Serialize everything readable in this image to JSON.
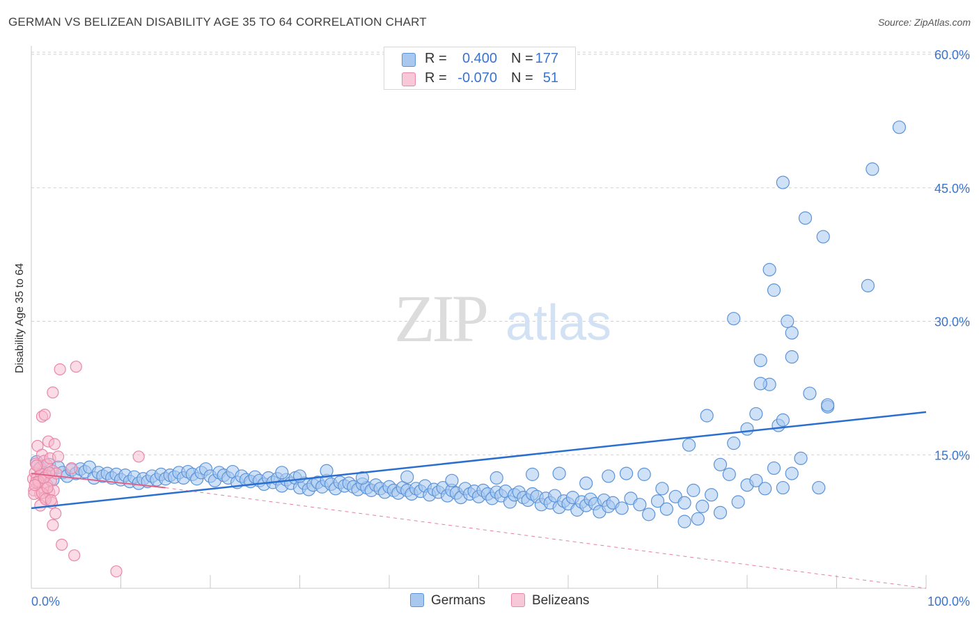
{
  "title": "GERMAN VS BELIZEAN DISABILITY AGE 35 TO 64 CORRELATION CHART",
  "source": "Source: ZipAtlas.com",
  "watermark": {
    "zip": "ZIP",
    "atlas": "atlas"
  },
  "colors": {
    "germans_fill": "#a8c8f0",
    "germans_stroke": "#5b93d8",
    "germans_line": "#2a6fd0",
    "belizeans_fill": "#f8b8cc",
    "belizeans_stroke": "#e888a8",
    "belizeans_line": "#e06088",
    "accent_text": "#3a74cc",
    "grid": "#d0d0d0"
  },
  "legend_top": {
    "rows": [
      {
        "r_label": "R =",
        "r_value": "0.400",
        "n_label": "N =",
        "n_value": "177"
      },
      {
        "r_label": "R =",
        "r_value": "-0.070",
        "n_label": "N =",
        "n_value": "51"
      }
    ]
  },
  "legend_bottom": {
    "germans": "Germans",
    "belizeans": "Belizeans"
  },
  "chart_data": {
    "type": "scatter",
    "title": "GERMAN VS BELIZEAN DISABILITY AGE 35 TO 64 CORRELATION CHART",
    "xlabel": "",
    "ylabel": "Disability Age 35 to 64",
    "xlim": [
      0,
      100
    ],
    "ylim": [
      0,
      60
    ],
    "x_tick_labels": [
      "0.0%",
      "100.0%"
    ],
    "y_ticks": [
      15,
      30,
      45,
      60
    ],
    "y_tick_labels": [
      "15.0%",
      "30.0%",
      "45.0%",
      "60.0%"
    ],
    "grid": "horizontal dashed",
    "legend_placement": "top-center",
    "series": [
      {
        "name": "Germans",
        "r": 0.4,
        "n": 177,
        "trend": {
          "x": [
            0,
            100
          ],
          "y": [
            9.0,
            19.8
          ],
          "style": "solid"
        },
        "points": [
          [
            0.6,
            14.2
          ],
          [
            1.0,
            13.5
          ],
          [
            1.5,
            12.8
          ],
          [
            2.0,
            13.9
          ],
          [
            2.4,
            12.2
          ],
          [
            3.0,
            13.6
          ],
          [
            3.5,
            13.0
          ],
          [
            4.0,
            12.6
          ],
          [
            4.5,
            13.3
          ],
          [
            5.0,
            12.9
          ],
          [
            5.5,
            13.4
          ],
          [
            6.0,
            13.1
          ],
          [
            6.5,
            13.6
          ],
          [
            7.0,
            12.4
          ],
          [
            7.5,
            13.0
          ],
          [
            8.0,
            12.6
          ],
          [
            8.5,
            12.9
          ],
          [
            9.0,
            12.4
          ],
          [
            9.5,
            12.8
          ],
          [
            10.0,
            12.2
          ],
          [
            10.5,
            12.7
          ],
          [
            11.0,
            12.0
          ],
          [
            11.5,
            12.5
          ],
          [
            12.0,
            11.8
          ],
          [
            12.5,
            12.3
          ],
          [
            13.0,
            12.0
          ],
          [
            13.5,
            12.6
          ],
          [
            14.0,
            12.2
          ],
          [
            14.5,
            12.8
          ],
          [
            15.0,
            12.3
          ],
          [
            15.5,
            12.7
          ],
          [
            16.0,
            12.5
          ],
          [
            16.5,
            13.0
          ],
          [
            17.0,
            12.4
          ],
          [
            17.5,
            13.1
          ],
          [
            18.0,
            12.8
          ],
          [
            18.5,
            12.3
          ],
          [
            19.0,
            13.0
          ],
          [
            19.5,
            13.4
          ],
          [
            20.0,
            12.6
          ],
          [
            20.5,
            12.1
          ],
          [
            21.0,
            13.0
          ],
          [
            21.5,
            12.7
          ],
          [
            22.0,
            12.4
          ],
          [
            22.5,
            13.1
          ],
          [
            23.0,
            11.9
          ],
          [
            23.5,
            12.6
          ],
          [
            24.0,
            12.2
          ],
          [
            24.5,
            12.0
          ],
          [
            25.0,
            12.5
          ],
          [
            25.5,
            12.1
          ],
          [
            26.0,
            11.7
          ],
          [
            26.5,
            12.4
          ],
          [
            27.0,
            11.9
          ],
          [
            27.5,
            12.3
          ],
          [
            28.0,
            11.5
          ],
          [
            28.5,
            12.2
          ],
          [
            29.0,
            11.8
          ],
          [
            29.5,
            12.4
          ],
          [
            30.0,
            11.3
          ],
          [
            30.5,
            11.8
          ],
          [
            31.0,
            11.1
          ],
          [
            31.5,
            11.6
          ],
          [
            32.0,
            11.9
          ],
          [
            32.5,
            11.4
          ],
          [
            33.0,
            12.1
          ],
          [
            33.5,
            11.7
          ],
          [
            34.0,
            11.2
          ],
          [
            34.5,
            11.9
          ],
          [
            35.0,
            11.5
          ],
          [
            35.5,
            11.8
          ],
          [
            36.0,
            11.4
          ],
          [
            36.5,
            11.1
          ],
          [
            37.0,
            11.7
          ],
          [
            37.5,
            11.3
          ],
          [
            38.0,
            11.0
          ],
          [
            38.5,
            11.6
          ],
          [
            39.0,
            11.2
          ],
          [
            39.5,
            10.8
          ],
          [
            40.0,
            11.4
          ],
          [
            40.5,
            11.0
          ],
          [
            41.0,
            10.7
          ],
          [
            41.5,
            11.3
          ],
          [
            42.0,
            11.0
          ],
          [
            42.5,
            10.6
          ],
          [
            43.0,
            11.2
          ],
          [
            43.5,
            10.9
          ],
          [
            44.0,
            11.5
          ],
          [
            44.5,
            10.5
          ],
          [
            45.0,
            11.1
          ],
          [
            45.5,
            10.8
          ],
          [
            46.0,
            11.3
          ],
          [
            46.5,
            10.4
          ],
          [
            47.0,
            11.0
          ],
          [
            47.5,
            10.7
          ],
          [
            48.0,
            10.2
          ],
          [
            48.5,
            11.2
          ],
          [
            49.0,
            10.6
          ],
          [
            49.5,
            10.9
          ],
          [
            50.0,
            10.3
          ],
          [
            50.5,
            11.0
          ],
          [
            51.0,
            10.6
          ],
          [
            51.5,
            10.1
          ],
          [
            52.0,
            10.8
          ],
          [
            52.5,
            10.4
          ],
          [
            53.0,
            10.9
          ],
          [
            53.5,
            9.7
          ],
          [
            54.0,
            10.5
          ],
          [
            54.5,
            10.8
          ],
          [
            55.0,
            10.2
          ],
          [
            55.5,
            9.9
          ],
          [
            56.0,
            10.6
          ],
          [
            56.5,
            10.3
          ],
          [
            57.0,
            9.4
          ],
          [
            57.5,
            10.1
          ],
          [
            58.0,
            9.6
          ],
          [
            58.5,
            10.4
          ],
          [
            59.0,
            9.1
          ],
          [
            59.5,
            9.8
          ],
          [
            60.0,
            9.5
          ],
          [
            60.5,
            10.2
          ],
          [
            61.0,
            8.8
          ],
          [
            61.5,
            9.7
          ],
          [
            62.0,
            9.3
          ],
          [
            62.5,
            10.0
          ],
          [
            63.0,
            9.5
          ],
          [
            63.5,
            8.6
          ],
          [
            64.0,
            9.9
          ],
          [
            64.5,
            9.2
          ],
          [
            65.0,
            9.6
          ],
          [
            66.0,
            9.0
          ],
          [
            67.0,
            10.1
          ],
          [
            68.0,
            9.4
          ],
          [
            69.0,
            8.3
          ],
          [
            70.0,
            9.8
          ],
          [
            71.0,
            8.9
          ],
          [
            72.0,
            10.3
          ],
          [
            73.0,
            9.6
          ],
          [
            74.0,
            11.0
          ],
          [
            75.0,
            9.2
          ],
          [
            76.0,
            10.5
          ],
          [
            77.0,
            8.5
          ],
          [
            78.0,
            12.8
          ],
          [
            79.0,
            9.7
          ],
          [
            80.0,
            11.6
          ],
          [
            81.0,
            12.1
          ],
          [
            82.0,
            11.2
          ],
          [
            83.0,
            13.5
          ],
          [
            84.0,
            11.3
          ],
          [
            85.0,
            12.9
          ],
          [
            28.0,
            13.0
          ],
          [
            30.0,
            12.6
          ],
          [
            33.0,
            13.2
          ],
          [
            37.0,
            12.4
          ],
          [
            42.0,
            12.5
          ],
          [
            47.0,
            12.1
          ],
          [
            52.0,
            12.4
          ],
          [
            56.0,
            12.8
          ],
          [
            59.0,
            12.9
          ],
          [
            62.0,
            11.8
          ],
          [
            64.5,
            12.6
          ],
          [
            66.5,
            12.9
          ],
          [
            68.5,
            12.8
          ],
          [
            70.5,
            11.2
          ],
          [
            73.0,
            7.5
          ],
          [
            73.5,
            16.1
          ],
          [
            74.5,
            7.8
          ],
          [
            75.5,
            19.4
          ],
          [
            77.0,
            13.9
          ],
          [
            78.5,
            16.3
          ],
          [
            80.0,
            17.9
          ],
          [
            81.0,
            19.6
          ],
          [
            82.5,
            22.9
          ],
          [
            83.5,
            18.3
          ],
          [
            84.0,
            18.9
          ],
          [
            85.0,
            26.0
          ],
          [
            86.0,
            14.6
          ],
          [
            87.0,
            21.9
          ],
          [
            88.0,
            11.3
          ],
          [
            89.0,
            20.4
          ],
          [
            78.5,
            30.3
          ],
          [
            81.5,
            25.6
          ],
          [
            85.0,
            28.7
          ],
          [
            81.5,
            23.0
          ],
          [
            84.5,
            30.0
          ],
          [
            82.5,
            35.8
          ],
          [
            83.0,
            33.5
          ],
          [
            84.0,
            45.6
          ],
          [
            88.5,
            39.5
          ],
          [
            86.5,
            41.6
          ],
          [
            94.0,
            47.1
          ],
          [
            97.0,
            51.8
          ],
          [
            93.5,
            34.0
          ],
          [
            89.0,
            20.6
          ]
        ]
      },
      {
        "name": "Belizeans",
        "r": -0.07,
        "n": 51,
        "trend": {
          "x": [
            0,
            15
          ],
          "y": [
            12.9,
            11.3
          ],
          "style": "solid",
          "extended": {
            "x": [
              15,
              100
            ],
            "y": [
              11.3,
              0.0
            ],
            "style": "dashed"
          }
        },
        "points": [
          [
            0.2,
            12.3
          ],
          [
            0.3,
            11.0
          ],
          [
            0.4,
            13.0
          ],
          [
            0.5,
            14.0
          ],
          [
            0.6,
            12.4
          ],
          [
            0.7,
            16.0
          ],
          [
            0.8,
            11.8
          ],
          [
            0.9,
            13.5
          ],
          [
            1.0,
            10.6
          ],
          [
            1.1,
            12.8
          ],
          [
            1.2,
            15.0
          ],
          [
            1.3,
            11.3
          ],
          [
            1.4,
            14.3
          ],
          [
            1.5,
            10.2
          ],
          [
            1.6,
            12.6
          ],
          [
            1.7,
            13.9
          ],
          [
            1.8,
            11.6
          ],
          [
            1.9,
            16.5
          ],
          [
            2.0,
            10.8
          ],
          [
            2.1,
            14.6
          ],
          [
            2.2,
            12.1
          ],
          [
            2.3,
            9.6
          ],
          [
            2.4,
            13.2
          ],
          [
            2.5,
            11.0
          ],
          [
            2.6,
            16.2
          ],
          [
            2.7,
            8.4
          ],
          [
            2.8,
            12.9
          ],
          [
            3.0,
            14.8
          ],
          [
            0.3,
            10.6
          ],
          [
            0.5,
            11.9
          ],
          [
            0.6,
            13.8
          ],
          [
            0.8,
            12.0
          ],
          [
            1.0,
            9.3
          ],
          [
            1.2,
            10.7
          ],
          [
            1.4,
            12.4
          ],
          [
            1.6,
            10.0
          ],
          [
            1.8,
            11.3
          ],
          [
            2.0,
            13.0
          ],
          [
            2.2,
            9.9
          ],
          [
            0.4,
            11.6
          ],
          [
            3.2,
            24.6
          ],
          [
            5.0,
            24.9
          ],
          [
            2.4,
            22.0
          ],
          [
            1.2,
            19.3
          ],
          [
            3.4,
            4.9
          ],
          [
            4.8,
            3.7
          ],
          [
            9.5,
            1.9
          ],
          [
            12.0,
            14.8
          ],
          [
            4.5,
            13.5
          ],
          [
            2.4,
            7.1
          ],
          [
            1.5,
            19.5
          ]
        ]
      }
    ]
  }
}
